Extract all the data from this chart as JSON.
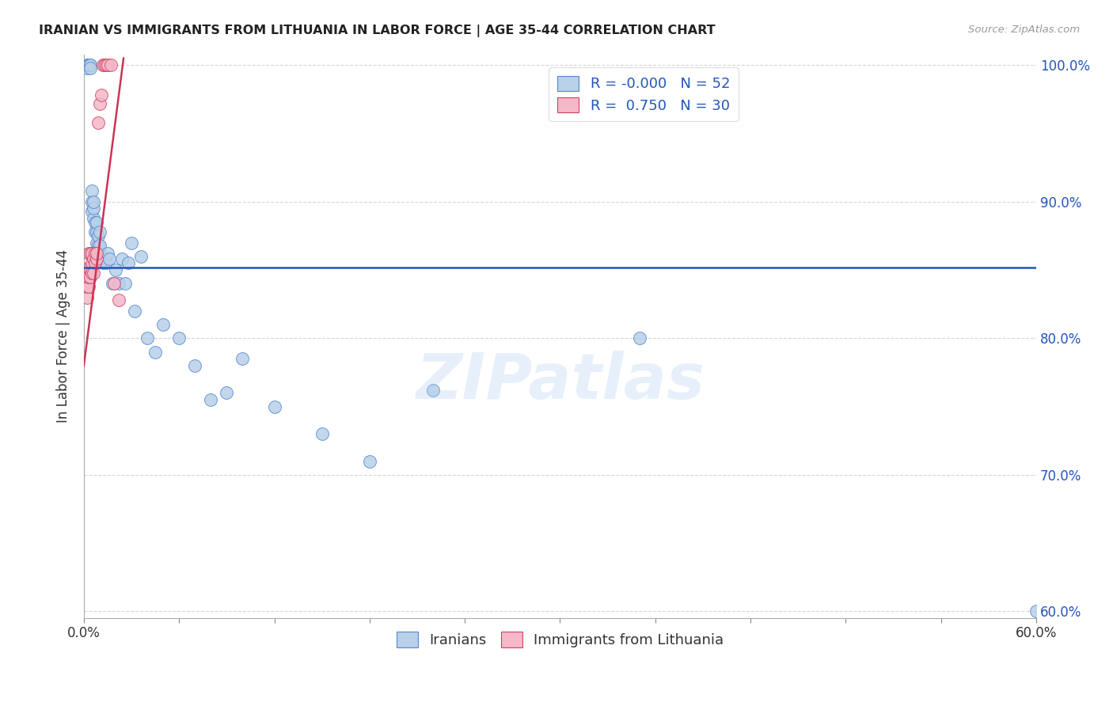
{
  "title": "IRANIAN VS IMMIGRANTS FROM LITHUANIA IN LABOR FORCE | AGE 35-44 CORRELATION CHART",
  "source": "Source: ZipAtlas.com",
  "ylabel": "In Labor Force | Age 35-44",
  "xlim": [
    0.0,
    0.6
  ],
  "ylim": [
    0.595,
    1.008
  ],
  "yticks": [
    0.6,
    0.7,
    0.8,
    0.9,
    1.0
  ],
  "yticklabels": [
    "60.0%",
    "70.0%",
    "80.0%",
    "90.0%",
    "100.0%"
  ],
  "blue_R": "-0.000",
  "blue_N": "52",
  "pink_R": "0.750",
  "pink_N": "30",
  "blue_color": "#b8d0e8",
  "pink_color": "#f5b8c8",
  "blue_edge_color": "#5588cc",
  "pink_edge_color": "#cc4466",
  "blue_line_color": "#2255bb",
  "pink_line_color": "#cc3355",
  "watermark": "ZIPatlas",
  "blue_line_y": 0.852,
  "blue_scatter_x": [
    0.002,
    0.002,
    0.003,
    0.003,
    0.004,
    0.004,
    0.004,
    0.005,
    0.005,
    0.005,
    0.006,
    0.006,
    0.006,
    0.007,
    0.007,
    0.008,
    0.008,
    0.008,
    0.009,
    0.009,
    0.01,
    0.01,
    0.01,
    0.011,
    0.012,
    0.013,
    0.014,
    0.015,
    0.016,
    0.018,
    0.02,
    0.022,
    0.024,
    0.026,
    0.028,
    0.03,
    0.032,
    0.036,
    0.04,
    0.045,
    0.05,
    0.06,
    0.07,
    0.08,
    0.09,
    0.1,
    0.12,
    0.15,
    0.18,
    0.22,
    0.35,
    0.6
  ],
  "blue_scatter_y": [
    0.998,
    1.0,
    1.0,
    1.0,
    1.0,
    1.0,
    0.998,
    0.893,
    0.9,
    0.908,
    0.888,
    0.895,
    0.9,
    0.878,
    0.885,
    0.87,
    0.878,
    0.885,
    0.868,
    0.875,
    0.862,
    0.868,
    0.878,
    0.86,
    0.855,
    0.858,
    0.855,
    0.862,
    0.858,
    0.84,
    0.85,
    0.84,
    0.858,
    0.84,
    0.855,
    0.87,
    0.82,
    0.86,
    0.8,
    0.79,
    0.81,
    0.8,
    0.78,
    0.755,
    0.76,
    0.785,
    0.75,
    0.73,
    0.71,
    0.762,
    0.8,
    0.6
  ],
  "pink_scatter_x": [
    0.001,
    0.002,
    0.002,
    0.002,
    0.003,
    0.003,
    0.003,
    0.003,
    0.004,
    0.004,
    0.004,
    0.005,
    0.005,
    0.005,
    0.006,
    0.006,
    0.007,
    0.007,
    0.008,
    0.008,
    0.009,
    0.01,
    0.011,
    0.012,
    0.013,
    0.014,
    0.015,
    0.017,
    0.019,
    0.022
  ],
  "pink_scatter_y": [
    0.84,
    0.83,
    0.838,
    0.845,
    0.838,
    0.845,
    0.852,
    0.862,
    0.845,
    0.852,
    0.862,
    0.848,
    0.855,
    0.862,
    0.848,
    0.858,
    0.855,
    0.862,
    0.858,
    0.862,
    0.958,
    0.972,
    0.978,
    1.0,
    1.0,
    1.0,
    1.0,
    1.0,
    0.84,
    0.828
  ],
  "pink_line_x0": 0.0,
  "pink_line_y0": 0.78,
  "pink_line_x1": 0.025,
  "pink_line_y1": 1.005
}
